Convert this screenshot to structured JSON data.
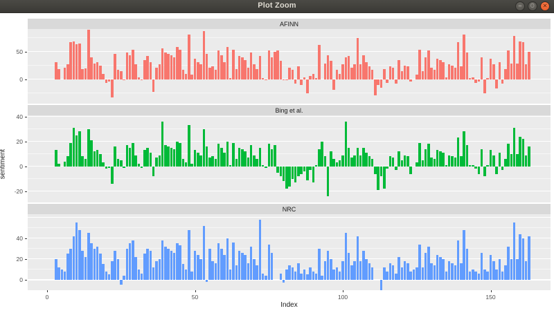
{
  "window": {
    "title": "Plot Zoom",
    "icons": {
      "minimize": "–",
      "maximize": "▢",
      "close": "✕"
    }
  },
  "chart_data": {
    "type": "bar",
    "xlabel": "Index",
    "ylabel": "sentiment",
    "x_ticks": [
      0,
      50,
      100,
      150
    ],
    "x_range": [
      0,
      163
    ],
    "legend": "none",
    "facets": "stacked vertically, one per lexicon",
    "panels": [
      {
        "label": "AFINN",
        "color": "#F8766D",
        "ylim": [
          -44,
          91
        ],
        "yticks": [
          0,
          50
        ],
        "grid_major": [
          0,
          50
        ],
        "grid_minor": [
          -25,
          25,
          75
        ],
        "values": [
          0,
          0,
          0,
          31,
          19,
          0,
          21,
          27,
          67,
          69,
          63,
          65,
          19,
          20,
          90,
          40,
          29,
          31,
          25,
          10,
          -6,
          -4,
          -33,
          46,
          17,
          15,
          -2,
          48,
          44,
          54,
          27,
          4,
          -2,
          35,
          42,
          31,
          -23,
          21,
          27,
          56,
          48,
          46,
          44,
          40,
          58,
          54,
          17,
          10,
          81,
          8,
          37,
          31,
          27,
          87,
          46,
          21,
          23,
          17,
          52,
          44,
          31,
          58,
          2,
          54,
          19,
          42,
          40,
          35,
          21,
          48,
          27,
          19,
          42,
          2,
          -2,
          52,
          40,
          50,
          52,
          33,
          -2,
          -2,
          21,
          17,
          -8,
          23,
          -10,
          4,
          -25,
          6,
          10,
          2,
          62,
          0,
          29,
          44,
          33,
          -19,
          17,
          10,
          27,
          40,
          42,
          21,
          27,
          75,
          27,
          44,
          31,
          23,
          17,
          -29,
          -10,
          -15,
          19,
          -6,
          23,
          21,
          -8,
          35,
          15,
          25,
          23,
          -4,
          0,
          8,
          54,
          15,
          40,
          52,
          21,
          17,
          37,
          35,
          31,
          4,
          27,
          25,
          21,
          67,
          23,
          81,
          48,
          2,
          4,
          -6,
          -4,
          40,
          -25,
          2,
          37,
          27,
          -17,
          31,
          -8,
          19,
          52,
          29,
          79,
          29,
          69,
          67,
          27,
          50
        ]
      },
      {
        "label": "Bing et al.",
        "color": "#00BA38",
        "ylim": [
          -29,
          41
        ],
        "yticks": [
          -20,
          0,
          20,
          40
        ],
        "grid_major": [
          -20,
          0,
          20,
          40
        ],
        "grid_minor": [
          -10,
          10,
          30
        ],
        "values": [
          0,
          0,
          0,
          13,
          2,
          0,
          4,
          8,
          19,
          31,
          25,
          28,
          8,
          6,
          30,
          21,
          12,
          13,
          10,
          3,
          -2,
          -1,
          -14,
          16,
          6,
          5,
          -1,
          17,
          15,
          19,
          9,
          2,
          -1,
          13,
          15,
          11,
          -8,
          7,
          9,
          36,
          17,
          16,
          15,
          14,
          20,
          19,
          6,
          3,
          33,
          2,
          13,
          11,
          9,
          30,
          16,
          7,
          8,
          6,
          18,
          15,
          11,
          20,
          1,
          19,
          6,
          15,
          14,
          12,
          7,
          17,
          9,
          6,
          15,
          1,
          -1,
          18,
          14,
          17,
          -5,
          -8,
          -12,
          -18,
          -16,
          -10,
          -13,
          -8,
          -6,
          -4,
          -11,
          -3,
          -13,
          1,
          14,
          20,
          8,
          -24,
          12,
          6,
          3,
          5,
          9,
          36,
          15,
          7,
          9,
          15,
          9,
          15,
          11,
          8,
          6,
          -6,
          -19,
          -8,
          -18,
          -2,
          8,
          7,
          -3,
          12,
          5,
          9,
          8,
          -6,
          0,
          3,
          19,
          5,
          14,
          18,
          7,
          6,
          13,
          12,
          11,
          1,
          9,
          8,
          7,
          23,
          8,
          28,
          17,
          1,
          1,
          -2,
          -6,
          14,
          -8,
          1,
          13,
          9,
          -6,
          11,
          -3,
          6,
          18,
          10,
          31,
          10,
          24,
          22,
          9,
          16
        ]
      },
      {
        "label": "NRC",
        "color": "#619CFF",
        "ylim": [
          -10,
          63
        ],
        "yticks": [
          0,
          20,
          40
        ],
        "grid_major": [
          0,
          20,
          40,
          60
        ],
        "grid_minor": [
          10,
          30,
          50
        ],
        "values": [
          0,
          0,
          0,
          20,
          12,
          10,
          8,
          25,
          30,
          42,
          55,
          48,
          28,
          22,
          45,
          35,
          30,
          32,
          25,
          15,
          8,
          5,
          18,
          28,
          20,
          -5,
          4,
          30,
          35,
          38,
          22,
          10,
          6,
          25,
          30,
          28,
          12,
          18,
          20,
          38,
          32,
          30,
          28,
          26,
          35,
          33,
          15,
          10,
          48,
          8,
          28,
          24,
          20,
          52,
          -2,
          30,
          18,
          16,
          35,
          30,
          24,
          40,
          10,
          36,
          14,
          28,
          26,
          24,
          16,
          32,
          20,
          14,
          58,
          6,
          4,
          34,
          26,
          0,
          0,
          6,
          -3,
          10,
          14,
          12,
          8,
          16,
          6,
          10,
          5,
          12,
          8,
          6,
          30,
          4,
          18,
          28,
          20,
          10,
          12,
          8,
          18,
          45,
          26,
          14,
          18,
          42,
          18,
          28,
          20,
          16,
          12,
          0,
          0,
          -10,
          12,
          8,
          16,
          14,
          6,
          22,
          12,
          18,
          16,
          8,
          10,
          12,
          34,
          12,
          26,
          32,
          16,
          14,
          24,
          22,
          20,
          8,
          18,
          16,
          14,
          38,
          16,
          48,
          30,
          8,
          10,
          8,
          6,
          26,
          10,
          8,
          24,
          18,
          10,
          20,
          8,
          14,
          32,
          20,
          55,
          20,
          44,
          40,
          18,
          42
        ]
      }
    ]
  }
}
